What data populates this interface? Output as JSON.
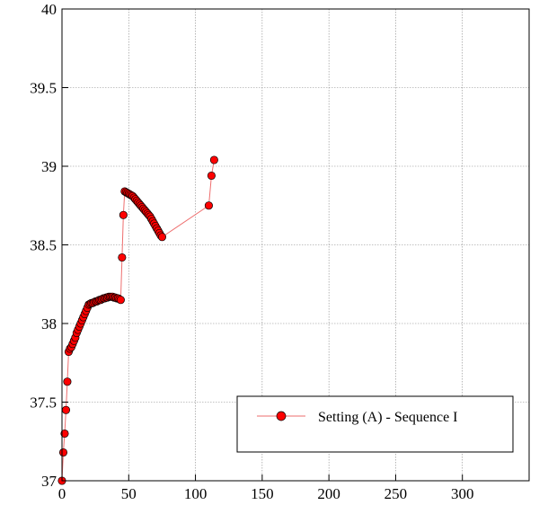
{
  "chart_data": {
    "type": "line",
    "title": "",
    "xlabel": "",
    "ylabel": "",
    "xlim": [
      0,
      350
    ],
    "ylim": [
      37,
      40
    ],
    "x_ticks": [
      0,
      50,
      100,
      150,
      200,
      250,
      300
    ],
    "y_ticks": [
      37,
      37.5,
      38,
      38.5,
      39,
      39.5,
      40
    ],
    "grid": true,
    "legend_position": "bottom-right",
    "markers": "circle",
    "series": [
      {
        "name": "Setting (A) - Sequence I",
        "color": "#ff0000",
        "line_color": "#ee6e6e",
        "points": [
          [
            0,
            37.0
          ],
          [
            1,
            37.18
          ],
          [
            2,
            37.3
          ],
          [
            3,
            37.45
          ],
          [
            4,
            37.63
          ],
          [
            5,
            37.82
          ],
          [
            6,
            37.84
          ],
          [
            7,
            37.85
          ],
          [
            8,
            37.87
          ],
          [
            9,
            37.89
          ],
          [
            10,
            37.91
          ],
          [
            11,
            37.94
          ],
          [
            12,
            37.96
          ],
          [
            13,
            37.98
          ],
          [
            14,
            38.0
          ],
          [
            15,
            38.02
          ],
          [
            16,
            38.04
          ],
          [
            17,
            38.06
          ],
          [
            18,
            38.08
          ],
          [
            19,
            38.1
          ],
          [
            20,
            38.12
          ],
          [
            21,
            38.125
          ],
          [
            22,
            38.13
          ],
          [
            23,
            38.13
          ],
          [
            24,
            38.135
          ],
          [
            25,
            38.14
          ],
          [
            26,
            38.14
          ],
          [
            27,
            38.145
          ],
          [
            28,
            38.15
          ],
          [
            29,
            38.15
          ],
          [
            30,
            38.155
          ],
          [
            31,
            38.16
          ],
          [
            32,
            38.16
          ],
          [
            33,
            38.165
          ],
          [
            34,
            38.165
          ],
          [
            35,
            38.17
          ],
          [
            36,
            38.17
          ],
          [
            37,
            38.17
          ],
          [
            38,
            38.17
          ],
          [
            39,
            38.165
          ],
          [
            40,
            38.165
          ],
          [
            41,
            38.16
          ],
          [
            42,
            38.16
          ],
          [
            43,
            38.155
          ],
          [
            44,
            38.15
          ],
          [
            45,
            38.42
          ],
          [
            46,
            38.69
          ],
          [
            47,
            38.84
          ],
          [
            48,
            38.835
          ],
          [
            49,
            38.83
          ],
          [
            50,
            38.825
          ],
          [
            51,
            38.82
          ],
          [
            52,
            38.815
          ],
          [
            53,
            38.81
          ],
          [
            54,
            38.8
          ],
          [
            55,
            38.79
          ],
          [
            56,
            38.78
          ],
          [
            57,
            38.77
          ],
          [
            58,
            38.76
          ],
          [
            59,
            38.75
          ],
          [
            60,
            38.74
          ],
          [
            61,
            38.73
          ],
          [
            62,
            38.72
          ],
          [
            63,
            38.71
          ],
          [
            64,
            38.7
          ],
          [
            65,
            38.69
          ],
          [
            66,
            38.68
          ],
          [
            67,
            38.665
          ],
          [
            68,
            38.65
          ],
          [
            69,
            38.635
          ],
          [
            70,
            38.62
          ],
          [
            71,
            38.605
          ],
          [
            72,
            38.59
          ],
          [
            73,
            38.575
          ],
          [
            74,
            38.56
          ],
          [
            75,
            38.55
          ],
          [
            110,
            38.75
          ],
          [
            112,
            38.94
          ],
          [
            114,
            39.04
          ]
        ]
      }
    ]
  }
}
